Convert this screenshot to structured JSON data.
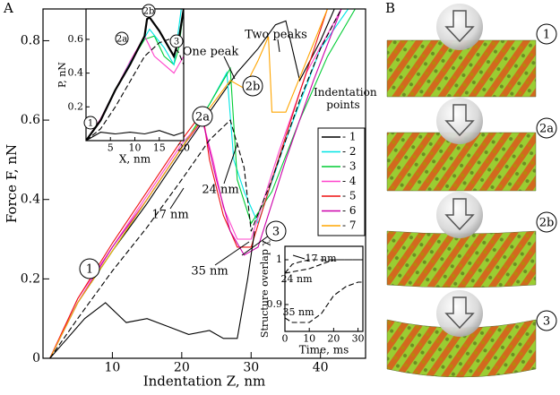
{
  "panel_a_label": "A",
  "chart_data": [
    {
      "type": "line",
      "xlabel": "Indentation Z, nm",
      "ylabel": "Force F, nN",
      "xlim": [
        0,
        46.5
      ],
      "ylim": [
        0,
        0.88
      ],
      "xticks": [
        10,
        20,
        30,
        40
      ],
      "yticks": [
        0,
        0.2,
        0.4,
        0.6,
        0.8
      ],
      "legend_title": "Indentation points",
      "annotations": [
        "One peak",
        "Two peaks",
        "1",
        "2a",
        "2b",
        "3",
        "24 nm",
        "17 nm",
        "35 nm"
      ],
      "series": [
        {
          "name": "- 1",
          "color": "#000000",
          "x": [
            1,
            5,
            10,
            15,
            20,
            24,
            28,
            31,
            33.5,
            35,
            37,
            40,
            42
          ],
          "values": [
            0,
            0.14,
            0.27,
            0.39,
            0.52,
            0.62,
            0.72,
            0.78,
            0.84,
            0.85,
            0.7,
            0.8,
            0.88
          ]
        },
        {
          "name": "- 2",
          "color": "#00e5e5",
          "x": [
            1,
            5,
            10,
            15,
            20,
            24,
            26.5,
            27.5,
            29,
            31,
            35,
            40,
            44
          ],
          "values": [
            0,
            0.14,
            0.27,
            0.4,
            0.53,
            0.64,
            0.72,
            0.5,
            0.42,
            0.34,
            0.55,
            0.78,
            0.88
          ]
        },
        {
          "name": "- 3",
          "color": "#00cc33",
          "x": [
            1,
            5,
            10,
            15,
            20,
            24,
            27,
            28,
            30,
            33,
            37,
            41,
            45
          ],
          "values": [
            0,
            0.14,
            0.27,
            0.4,
            0.53,
            0.64,
            0.73,
            0.45,
            0.34,
            0.42,
            0.6,
            0.76,
            0.88
          ]
        },
        {
          "name": "- 4",
          "color": "#ff44cc",
          "x": [
            1,
            5,
            10,
            15,
            20,
            23,
            24.5,
            26,
            28,
            30,
            34,
            38,
            43
          ],
          "values": [
            0,
            0.15,
            0.28,
            0.41,
            0.54,
            0.6,
            0.5,
            0.38,
            0.3,
            0.3,
            0.52,
            0.72,
            0.88
          ]
        },
        {
          "name": "- 5",
          "color": "#ee1111",
          "x": [
            1,
            5,
            10,
            15,
            20,
            23,
            24,
            26,
            28,
            30,
            33,
            37,
            41
          ],
          "values": [
            0,
            0.15,
            0.29,
            0.42,
            0.55,
            0.62,
            0.5,
            0.36,
            0.28,
            0.28,
            0.45,
            0.67,
            0.88
          ]
        },
        {
          "name": "- 6",
          "color": "#cc00aa",
          "x": [
            1,
            5,
            10,
            15,
            20,
            23,
            25,
            27,
            29,
            31,
            35,
            39,
            43
          ],
          "values": [
            0,
            0.14,
            0.28,
            0.4,
            0.53,
            0.6,
            0.45,
            0.32,
            0.26,
            0.28,
            0.5,
            0.7,
            0.88
          ]
        },
        {
          "name": "- 7",
          "color": "#ffa500",
          "x": [
            1,
            5,
            10,
            15,
            20,
            24,
            27,
            29,
            31,
            32.5,
            33,
            35,
            38,
            41
          ],
          "values": [
            0,
            0.14,
            0.27,
            0.4,
            0.53,
            0.63,
            0.7,
            0.68,
            0.75,
            0.81,
            0.62,
            0.62,
            0.75,
            0.88
          ]
        },
        {
          "color": "#000000",
          "dashed": true,
          "x": [
            1,
            5,
            10,
            15,
            20,
            24,
            27,
            29,
            30,
            33,
            37,
            40,
            43
          ],
          "values": [
            0,
            0.1,
            0.22,
            0.33,
            0.45,
            0.55,
            0.6,
            0.48,
            0.32,
            0.45,
            0.65,
            0.78,
            0.88
          ]
        },
        {
          "color": "#000000",
          "x": [
            1,
            3,
            6,
            9,
            12,
            15,
            18,
            21,
            24,
            26,
            28,
            29.5,
            30.5
          ],
          "values": [
            0,
            0.04,
            0.1,
            0.14,
            0.09,
            0.1,
            0.08,
            0.06,
            0.07,
            0.05,
            0.05,
            0.2,
            0.32
          ]
        }
      ]
    },
    {
      "type": "line",
      "xlabel": "X, nm",
      "ylabel": "P, nN",
      "xlim": [
        0,
        20
      ],
      "ylim": [
        0,
        0.78
      ],
      "xticks": [
        5,
        10,
        15,
        20
      ],
      "yticks": [
        0.2,
        0.4,
        0.6
      ],
      "annotations": [
        "1",
        "2a",
        "2b",
        "3"
      ],
      "series": [
        {
          "color": "#00cc33",
          "x": [
            0,
            3,
            6,
            9,
            12,
            14,
            16,
            18,
            19,
            20
          ],
          "values": [
            0,
            0.12,
            0.3,
            0.46,
            0.6,
            0.62,
            0.5,
            0.45,
            0.55,
            0.78
          ]
        },
        {
          "color": "#ff44cc",
          "x": [
            0,
            3,
            6,
            9,
            12,
            14,
            16,
            18,
            20
          ],
          "values": [
            0,
            0.13,
            0.3,
            0.47,
            0.62,
            0.5,
            0.45,
            0.4,
            0.5
          ]
        },
        {
          "color": "#00e5e5",
          "x": [
            0,
            3,
            6,
            9,
            12,
            13,
            16,
            18,
            19.5
          ],
          "values": [
            0,
            0.12,
            0.3,
            0.46,
            0.61,
            0.66,
            0.55,
            0.45,
            0.78
          ]
        },
        {
          "color": "#000000",
          "x": [
            0,
            3,
            6,
            9,
            12,
            12.5,
            13,
            15,
            17,
            18,
            19,
            20
          ],
          "values": [
            0,
            0.12,
            0.3,
            0.45,
            0.62,
            0.72,
            0.73,
            0.65,
            0.55,
            0.5,
            0.6,
            0.78
          ]
        },
        {
          "color": "#000000",
          "dashed": true,
          "x": [
            0,
            3,
            6,
            9,
            12,
            15,
            17,
            19,
            20
          ],
          "values": [
            0,
            0.07,
            0.2,
            0.35,
            0.5,
            0.58,
            0.6,
            0.52,
            0.45
          ]
        },
        {
          "color": "#000000",
          "x": [
            0,
            3,
            6,
            9,
            12,
            15,
            18,
            20
          ],
          "values": [
            0,
            0.05,
            0.04,
            0.05,
            0.04,
            0.06,
            0.03,
            0.05
          ]
        }
      ]
    },
    {
      "type": "line",
      "xlabel": "Time, ms",
      "ylabel": "Structure overlap χ",
      "xlim": [
        0,
        32
      ],
      "ylim": [
        0.84,
        1.03
      ],
      "xticks": [
        0,
        10,
        20,
        30
      ],
      "yticks": [
        0.9,
        1
      ],
      "annotations": [
        "17 nm",
        "24 nm",
        "35 nm"
      ],
      "series": [
        {
          "color": "#000000",
          "dashed": true,
          "x": [
            0,
            3,
            6,
            10,
            15,
            20,
            25,
            32
          ],
          "values": [
            0.97,
            0.99,
            0.995,
            1.0,
            1.0,
            1.0,
            1.0,
            1.0
          ]
        },
        {
          "color": "#000000",
          "dashed": true,
          "x": [
            0,
            5,
            10,
            15,
            20,
            25,
            32
          ],
          "values": [
            0.97,
            0.975,
            0.98,
            0.99,
            1.0,
            1.0,
            1.0
          ]
        },
        {
          "color": "#000000",
          "dashed": true,
          "x": [
            0,
            3,
            6,
            10,
            15,
            20,
            25,
            30,
            32
          ],
          "values": [
            0.87,
            0.86,
            0.86,
            0.86,
            0.88,
            0.92,
            0.94,
            0.95,
            0.95
          ]
        }
      ]
    }
  ],
  "panel_b": {
    "label": "B",
    "labels": [
      "1",
      "2a",
      "2b",
      "3"
    ]
  }
}
